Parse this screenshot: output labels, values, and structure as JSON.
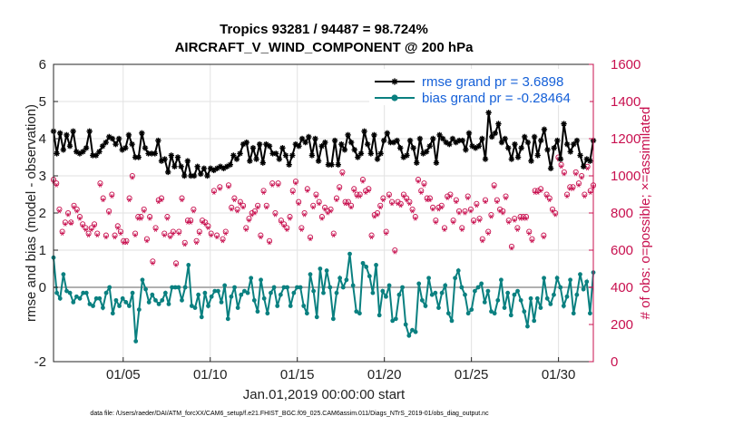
{
  "chart_data": {
    "type": "line",
    "title_line1": "Tropics 93281 / 94487 = 98.724%",
    "title_line2": "AIRCRAFT_V_WIND_COMPONENT @ 200 hPa",
    "xlabel": "Jan.01,2019 00:00:00 start",
    "ylabel_left": "rmse and bias (model - observation)",
    "ylabel_right": "# of obs: o=possible; ×=assimilated",
    "x_range_days": [
      1,
      32
    ],
    "xticks": [
      {
        "day": 5,
        "label": "01/05"
      },
      {
        "day": 10,
        "label": "01/10"
      },
      {
        "day": 15,
        "label": "01/15"
      },
      {
        "day": 20,
        "label": "01/20"
      },
      {
        "day": 25,
        "label": "01/25"
      },
      {
        "day": 30,
        "label": "01/30"
      }
    ],
    "ylim_left": [
      -2,
      6
    ],
    "yticks_left": [
      "-2",
      "0",
      "1",
      "2",
      "3",
      "4",
      "5",
      "6"
    ],
    "ylim_right": [
      0,
      1600
    ],
    "yticks_right": [
      "0",
      "200",
      "400",
      "600",
      "800",
      "1000",
      "1200",
      "1400",
      "1600"
    ],
    "grid": true,
    "legend_position": "top-right",
    "colors": {
      "rmse": "#000000",
      "bias": "#0a8080",
      "obs": "#c8104f",
      "zero_line": "#b0b0b0",
      "legend_text": "#1560d8"
    },
    "series": [
      {
        "name": "rmse grand pr = 3.6898",
        "type": "line",
        "values": [
          4.2,
          3.6,
          4.15,
          3.7,
          4.1,
          3.8,
          4.2,
          3.65,
          3.6,
          3.65,
          3.75,
          4.2,
          3.55,
          3.55,
          3.65,
          3.8,
          3.9,
          4.05,
          4.0,
          3.85,
          4.0,
          3.7,
          3.75,
          4.1,
          3.85,
          3.5,
          3.5,
          4.15,
          3.75,
          3.6,
          3.6,
          3.6,
          3.95,
          3.4,
          3.45,
          3.1,
          3.55,
          3.25,
          3.5,
          3.25,
          3.0,
          3.4,
          3.0,
          3.0,
          3.25,
          3.05,
          3.2,
          3.0,
          3.2,
          3.15,
          3.2,
          3.25,
          3.2,
          3.25,
          3.3,
          3.55,
          3.45,
          3.6,
          3.85,
          3.9,
          3.4,
          3.75,
          3.45,
          3.85,
          3.35,
          3.85,
          3.8,
          3.6,
          3.6,
          3.45,
          3.75,
          3.55,
          3.3,
          3.55,
          3.85,
          3.8,
          4.0,
          3.9,
          4.05,
          3.55,
          4.0,
          3.4,
          3.8,
          3.9,
          3.3,
          3.3,
          3.95,
          3.3,
          3.85,
          3.7,
          4.1,
          3.9,
          3.7,
          3.5,
          3.6,
          4.2,
          3.85,
          3.6,
          4.1,
          3.45,
          3.6,
          3.95,
          4.15,
          3.9,
          3.9,
          3.95,
          3.75,
          3.5,
          3.55,
          3.95,
          3.75,
          3.35,
          4.0,
          3.6,
          3.65,
          3.8,
          4.0,
          3.35,
          4.1,
          4.0,
          3.9,
          3.85,
          4.0,
          3.9,
          3.95,
          3.95,
          3.7,
          4.15,
          3.8,
          3.75,
          3.8,
          4.0,
          3.45,
          4.7,
          4.05,
          4.15,
          4.4,
          3.9,
          4.0,
          3.75,
          3.45,
          3.85,
          3.5,
          3.75,
          4.05,
          3.9,
          3.4,
          4.05,
          3.55,
          3.95,
          4.25,
          3.7,
          3.2,
          3.75,
          3.95,
          3.45,
          4.4,
          3.85,
          3.65,
          3.85,
          3.95,
          3.55,
          3.25,
          3.45,
          3.4,
          3.95
        ]
      },
      {
        "name": "bias grand pr = -0.28464",
        "type": "line",
        "values": [
          0.8,
          -0.15,
          -0.3,
          0.35,
          -0.1,
          -0.15,
          -0.4,
          -0.25,
          -0.3,
          -0.15,
          -0.15,
          -0.45,
          -0.5,
          -0.3,
          -0.3,
          -0.55,
          -0.15,
          0.0,
          -0.7,
          -0.35,
          -0.5,
          -0.3,
          -0.4,
          -0.5,
          -0.15,
          -1.45,
          -0.6,
          0.2,
          -0.05,
          -0.4,
          -0.2,
          -0.35,
          -0.45,
          -0.35,
          -0.15,
          -0.45,
          0.0,
          0.0,
          0.0,
          -0.35,
          0.0,
          0.6,
          -0.5,
          -0.55,
          -0.2,
          -0.8,
          -0.15,
          -0.5,
          -0.25,
          -0.1,
          -0.1,
          -0.4,
          0.05,
          -0.85,
          -0.25,
          0.0,
          -0.55,
          -0.2,
          -0.1,
          -0.15,
          0.25,
          -0.35,
          -0.65,
          0.2,
          -0.3,
          -0.7,
          -0.15,
          0.0,
          -0.5,
          -0.2,
          0.0,
          0.0,
          -0.5,
          -0.15,
          0.0,
          0.0,
          -0.5,
          -0.7,
          0.35,
          -0.1,
          -0.8,
          0.5,
          -0.15,
          0.45,
          0.0,
          -0.85,
          -0.15,
          0.25,
          0.0,
          0.2,
          0.9,
          0.05,
          -0.65,
          -0.7,
          0.65,
          0.55,
          0.3,
          -0.15,
          0.6,
          -0.75,
          -0.1,
          -0.25,
          0.05,
          -0.9,
          -0.85,
          -0.2,
          0.0,
          -1.0,
          -1.3,
          -1.15,
          -1.2,
          0.1,
          -0.35,
          -0.5,
          0.25,
          -0.2,
          -0.15,
          -0.55,
          -0.15,
          0.05,
          -0.7,
          -0.9,
          0.25,
          0.45,
          0.0,
          -0.2,
          -0.7,
          -0.6,
          -0.1,
          0.0,
          0.1,
          -0.4,
          -0.1,
          -0.65,
          -0.7,
          -0.35,
          0.2,
          -0.55,
          -0.15,
          -0.75,
          -0.2,
          -0.1,
          -0.35,
          -0.65,
          -1.05,
          -0.3,
          -0.9,
          -0.3,
          -0.55,
          0.25,
          -0.3,
          -0.45,
          -0.2,
          0.25,
          0.0,
          -0.5,
          -0.25,
          0.2,
          -0.7,
          -0.2,
          0.35,
          -0.05,
          0.15,
          -0.7,
          0.4
        ]
      },
      {
        "name": "obs possible",
        "type": "scatter",
        "marker": "circle",
        "values": [
          980,
          960,
          820,
          700,
          750,
          800,
          750,
          840,
          820,
          780,
          740,
          720,
          690,
          720,
          740,
          690,
          960,
          880,
          680,
          810,
          900,
          680,
          730,
          700,
          650,
          650,
          880,
          1000,
          690,
          780,
          780,
          820,
          660,
          780,
          540,
          720,
          870,
          880,
          690,
          780,
          680,
          700,
          530,
          700,
          880,
          640,
          760,
          760,
          820,
          650,
          700,
          760,
          750,
          730,
          690,
          920,
          680,
          940,
          660,
          700,
          950,
          830,
          880,
          820,
          860,
          840,
          720,
          770,
          800,
          810,
          840,
          680,
          920,
          840,
          650,
          960,
          800,
          960,
          760,
          740,
          720,
          780,
          920,
          970,
          860,
          720,
          800,
          930,
          670,
          840,
          900,
          860,
          780,
          830,
          810,
          820,
          690,
          880,
          940,
          1020,
          860,
          860,
          840,
          930,
          900,
          900,
          980,
          920,
          930,
          680,
          790,
          800,
          840,
          880,
          700,
          900,
          860,
          600,
          860,
          850,
          900,
          880,
          860,
          820,
          780,
          980,
          920,
          960,
          880,
          880,
          830,
          760,
          830,
          840,
          720,
          890,
          900,
          760,
          870,
          810,
          720,
          810,
          890,
          820,
          760,
          850,
          770,
          660,
          870,
          700,
          790,
          950,
          870,
          820,
          810,
          890,
          760,
          620,
          770,
          720,
          780,
          780,
          780,
          700,
          660,
          920,
          920,
          930,
          680,
          900,
          880,
          820,
          800,
          1100,
          1060,
          1020,
          900,
          940,
          940,
          1020,
          960,
          1000,
          900,
          1050,
          920,
          950
        ]
      },
      {
        "name": "obs assimilated",
        "type": "scatter",
        "marker": "asterisk",
        "values": [
          970,
          950,
          810,
          690,
          740,
          790,
          745,
          830,
          810,
          770,
          730,
          710,
          680,
          710,
          730,
          680,
          950,
          870,
          670,
          800,
          890,
          670,
          720,
          690,
          640,
          640,
          870,
          990,
          680,
          770,
          770,
          810,
          650,
          770,
          530,
          710,
          860,
          870,
          680,
          770,
          670,
          690,
          520,
          690,
          870,
          630,
          750,
          750,
          810,
          640,
          690,
          750,
          740,
          720,
          680,
          910,
          670,
          930,
          650,
          690,
          940,
          820,
          870,
          810,
          850,
          830,
          710,
          760,
          790,
          800,
          830,
          670,
          910,
          830,
          640,
          950,
          790,
          950,
          750,
          730,
          710,
          770,
          910,
          960,
          850,
          710,
          790,
          920,
          660,
          830,
          890,
          850,
          770,
          820,
          800,
          810,
          680,
          870,
          930,
          1010,
          850,
          850,
          830,
          920,
          890,
          890,
          970,
          910,
          920,
          670,
          780,
          790,
          830,
          870,
          690,
          890,
          850,
          590,
          850,
          840,
          890,
          870,
          850,
          810,
          770,
          970,
          910,
          950,
          870,
          870,
          820,
          750,
          820,
          830,
          710,
          880,
          890,
          750,
          860,
          800,
          710,
          800,
          880,
          810,
          750,
          840,
          760,
          650,
          860,
          690,
          780,
          940,
          860,
          810,
          800,
          880,
          750,
          610,
          760,
          710,
          770,
          770,
          770,
          690,
          650,
          910,
          910,
          920,
          670,
          890,
          870,
          810,
          790,
          1090,
          1050,
          1010,
          890,
          930,
          930,
          1010,
          950,
          990,
          890,
          1040,
          910,
          940
        ]
      }
    ],
    "legend": {
      "rmse": "rmse grand pr = 3.6898",
      "bias": "bias grand pr = -0.28464"
    }
  },
  "footer": "data file: /Users/raeder/DAI/ATM_forcXX/CAM6_setup/f.e21.FHIST_BGC.f09_025.CAM6assim.011/Diags_NTrS_2019-01/obs_diag_output.nc"
}
